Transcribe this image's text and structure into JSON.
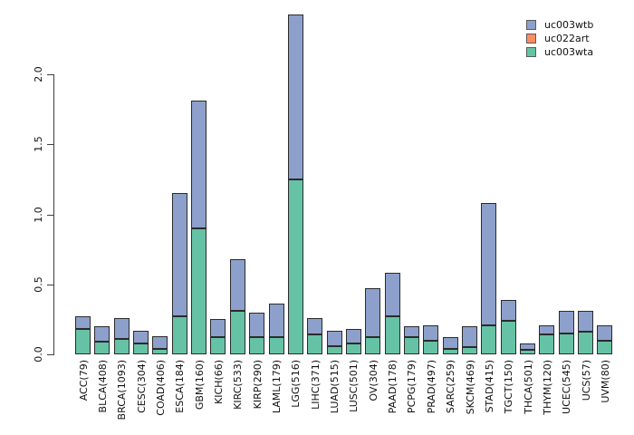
{
  "chart_data": {
    "type": "bar",
    "stacked": true,
    "title": "",
    "xlabel": "",
    "ylabel": "",
    "categories": [
      "ACC(79)",
      "BLCA(408)",
      "BRCA(1093)",
      "CESC(304)",
      "COAD(406)",
      "ESCA(184)",
      "GBM(160)",
      "KICH(66)",
      "KIRC(533)",
      "KIRP(290)",
      "LAML(179)",
      "LGG(516)",
      "LIHC(371)",
      "LUAD(515)",
      "LUSC(501)",
      "OV(304)",
      "PAAD(178)",
      "PCPG(179)",
      "PRAD(497)",
      "SARC(259)",
      "SKCM(469)",
      "STAD(415)",
      "TGCT(150)",
      "THCA(501)",
      "THYM(120)",
      "UCEC(545)",
      "UCS(57)",
      "UVM(80)"
    ],
    "series": [
      {
        "name": "uc003wtb",
        "color": "#8DA0CB",
        "values": [
          0.09,
          0.11,
          0.15,
          0.09,
          0.09,
          0.88,
          0.91,
          0.13,
          0.37,
          0.18,
          0.24,
          1.18,
          0.12,
          0.11,
          0.1,
          0.35,
          0.31,
          0.08,
          0.11,
          0.08,
          0.15,
          0.87,
          0.15,
          0.045,
          0.07,
          0.16,
          0.15,
          0.11
        ]
      },
      {
        "name": "uc022art",
        "color": "#FC8D62",
        "values": [
          0,
          0,
          0,
          0,
          0,
          0,
          0,
          0,
          0,
          0,
          0,
          0,
          0,
          0,
          0,
          0,
          0,
          0,
          0,
          0,
          0,
          0,
          0,
          0,
          0,
          0,
          0,
          0
        ]
      },
      {
        "name": "uc003wta",
        "color": "#66C2A5",
        "values": [
          0.18,
          0.09,
          0.11,
          0.08,
          0.04,
          0.27,
          0.9,
          0.12,
          0.31,
          0.12,
          0.12,
          1.25,
          0.14,
          0.06,
          0.08,
          0.12,
          0.27,
          0.12,
          0.1,
          0.04,
          0.05,
          0.21,
          0.24,
          0.035,
          0.14,
          0.15,
          0.16,
          0.1
        ]
      }
    ],
    "stack_order_bottom_to_top": [
      "uc003wta",
      "uc022art",
      "uc003wtb"
    ],
    "y_ticks": [
      "0.0",
      "0.5",
      "1.0",
      "1.5",
      "2.0"
    ],
    "ylim": [
      0,
      2.45
    ],
    "grid": false,
    "legend_position": "top-right",
    "bar_border_color": "#2b2b2b",
    "axis_color": "#3f3f3f",
    "text_color": "#111111",
    "background_color": "#ffffff"
  },
  "legend": {
    "items": [
      {
        "label": "uc003wtb",
        "color": "#8DA0CB"
      },
      {
        "label": "uc022art",
        "color": "#FC8D62"
      },
      {
        "label": "uc003wta",
        "color": "#66C2A5"
      }
    ]
  }
}
